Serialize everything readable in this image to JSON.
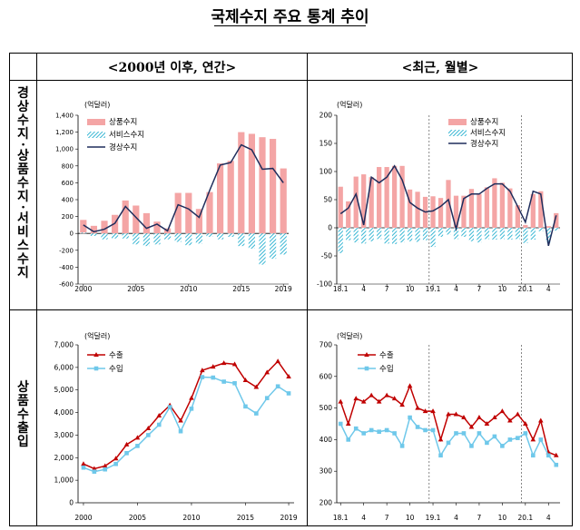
{
  "title": "국제수지 주요 통계 추이",
  "header": {
    "left": "<2000년 이후, 연간>",
    "right": "<최근, 월별>"
  },
  "rows": {
    "top": "경상수지·상품수지·서비스수지",
    "bottom": "상품수출입"
  },
  "chart_data": [
    {
      "id": "annual-balance",
      "type": "bar",
      "unit_label": "(억달러)",
      "x": [
        2000,
        2001,
        2002,
        2003,
        2004,
        2005,
        2006,
        2007,
        2008,
        2009,
        2010,
        2011,
        2012,
        2013,
        2014,
        2015,
        2016,
        2017,
        2018,
        2019
      ],
      "xticks": [
        "2000",
        "2005",
        "2010",
        "2015",
        "2019"
      ],
      "yticks": [
        -600,
        -400,
        -200,
        0,
        200,
        400,
        600,
        800,
        1000,
        1200,
        1400
      ],
      "ylim": [
        -600,
        1400
      ],
      "series": [
        {
          "name": "상품수지",
          "kind": "bar",
          "color": "#f4a5a5",
          "values": [
            160,
            90,
            150,
            220,
            390,
            330,
            240,
            140,
            60,
            480,
            480,
            290,
            490,
            830,
            860,
            1200,
            1180,
            1140,
            1120,
            770
          ]
        },
        {
          "name": "서비스수지",
          "kind": "bar",
          "color": "#39b7d4",
          "values": [
            10,
            -30,
            -70,
            -60,
            -60,
            -130,
            -150,
            -130,
            -70,
            -100,
            -140,
            -120,
            -40,
            -70,
            -40,
            -150,
            -180,
            -370,
            -300,
            -250
          ]
        },
        {
          "name": "경상수지",
          "kind": "line",
          "color": "#1f2d5c",
          "values": [
            100,
            20,
            50,
            120,
            320,
            190,
            60,
            110,
            30,
            340,
            290,
            190,
            510,
            810,
            840,
            1050,
            990,
            760,
            770,
            600
          ]
        }
      ]
    },
    {
      "id": "monthly-balance",
      "type": "bar",
      "unit_label": "(억달러)",
      "x": [
        "18.1",
        "18.2",
        "18.3",
        "18.4",
        "18.5",
        "18.6",
        "18.7",
        "18.8",
        "18.9",
        "18.10",
        "18.11",
        "18.12",
        "19.1",
        "19.2",
        "19.3",
        "19.4",
        "19.5",
        "19.6",
        "19.7",
        "19.8",
        "19.9",
        "19.10",
        "19.11",
        "19.12",
        "20.1",
        "20.2",
        "20.3",
        "20.4",
        "20.5"
      ],
      "xticks": [
        "18.1",
        "4",
        "7",
        "10",
        "19.1",
        "4",
        "7",
        "10",
        "20.1",
        "4"
      ],
      "yticks": [
        -100,
        -50,
        0,
        50,
        100,
        150,
        200
      ],
      "ylim": [
        -100,
        200
      ],
      "series": [
        {
          "name": "상품수지",
          "kind": "bar",
          "color": "#f4a5a5",
          "values": [
            73,
            47,
            91,
            95,
            90,
            108,
            108,
            110,
            110,
            68,
            64,
            55,
            56,
            53,
            85,
            57,
            57,
            69,
            60,
            72,
            88,
            80,
            70,
            40,
            5,
            60,
            65,
            3,
            26
          ]
        },
        {
          "name": "서비스수지",
          "kind": "bar",
          "color": "#39b7d4",
          "values": [
            -45,
            -22,
            -26,
            -28,
            -24,
            -20,
            -28,
            -29,
            -26,
            -24,
            -25,
            -22,
            -34,
            -16,
            -12,
            -20,
            -16,
            -24,
            -26,
            -20,
            -21,
            -20,
            -21,
            -20,
            -27,
            -21,
            -6,
            -26,
            -5
          ]
        },
        {
          "name": "경상수지",
          "kind": "line",
          "color": "#1f2d5c",
          "values": [
            25,
            35,
            60,
            5,
            90,
            80,
            90,
            110,
            85,
            45,
            35,
            28,
            30,
            38,
            50,
            -2,
            52,
            60,
            60,
            70,
            78,
            78,
            65,
            38,
            10,
            65,
            60,
            -32,
            22
          ]
        }
      ]
    },
    {
      "id": "annual-trade",
      "type": "line",
      "unit_label": "(억달러)",
      "x": [
        2000,
        2001,
        2002,
        2003,
        2004,
        2005,
        2006,
        2007,
        2008,
        2009,
        2010,
        2011,
        2012,
        2013,
        2014,
        2015,
        2016,
        2017,
        2018,
        2019
      ],
      "xticks": [
        "2000",
        "2005",
        "2010",
        "2015",
        "2019"
      ],
      "yticks": [
        0,
        1000,
        2000,
        3000,
        4000,
        5000,
        6000,
        7000
      ],
      "ylim": [
        0,
        7000
      ],
      "series": [
        {
          "name": "수출",
          "color": "#c00000",
          "marker": "triangle",
          "values": [
            1720,
            1510,
            1630,
            1960,
            2580,
            2880,
            3300,
            3860,
            4320,
            3640,
            4640,
            5870,
            6030,
            6190,
            6140,
            5430,
            5130,
            5780,
            6270,
            5590
          ]
        },
        {
          "name": "수입",
          "color": "#6fc8ea",
          "marker": "square",
          "values": [
            1560,
            1380,
            1480,
            1720,
            2200,
            2520,
            3000,
            3460,
            4240,
            3170,
            4170,
            5570,
            5550,
            5370,
            5300,
            4270,
            3960,
            4640,
            5160,
            4850
          ]
        }
      ]
    },
    {
      "id": "monthly-trade",
      "type": "line",
      "unit_label": "(억달러)",
      "x": [
        "18.1",
        "18.2",
        "18.3",
        "18.4",
        "18.5",
        "18.6",
        "18.7",
        "18.8",
        "18.9",
        "18.10",
        "18.11",
        "18.12",
        "19.1",
        "19.2",
        "19.3",
        "19.4",
        "19.5",
        "19.6",
        "19.7",
        "19.8",
        "19.9",
        "19.10",
        "19.11",
        "19.12",
        "20.1",
        "20.2",
        "20.3",
        "20.4",
        "20.5"
      ],
      "xticks": [
        "18.1",
        "4",
        "7",
        "10",
        "19.1",
        "4",
        "7",
        "10",
        "20.1",
        "4"
      ],
      "yticks": [
        200,
        300,
        400,
        500,
        600,
        700
      ],
      "ylim": [
        200,
        700
      ],
      "series": [
        {
          "name": "수출",
          "color": "#c00000",
          "marker": "triangle",
          "values": [
            520,
            450,
            530,
            520,
            540,
            520,
            540,
            530,
            510,
            570,
            500,
            490,
            490,
            400,
            480,
            480,
            470,
            440,
            470,
            450,
            470,
            490,
            460,
            480,
            450,
            400,
            460,
            360,
            350
          ]
        },
        {
          "name": "수입",
          "color": "#6fc8ea",
          "marker": "square",
          "values": [
            450,
            400,
            435,
            420,
            430,
            425,
            430,
            420,
            380,
            470,
            440,
            430,
            430,
            350,
            390,
            420,
            420,
            380,
            420,
            390,
            410,
            380,
            400,
            405,
            420,
            350,
            400,
            350,
            320
          ]
        }
      ]
    }
  ]
}
